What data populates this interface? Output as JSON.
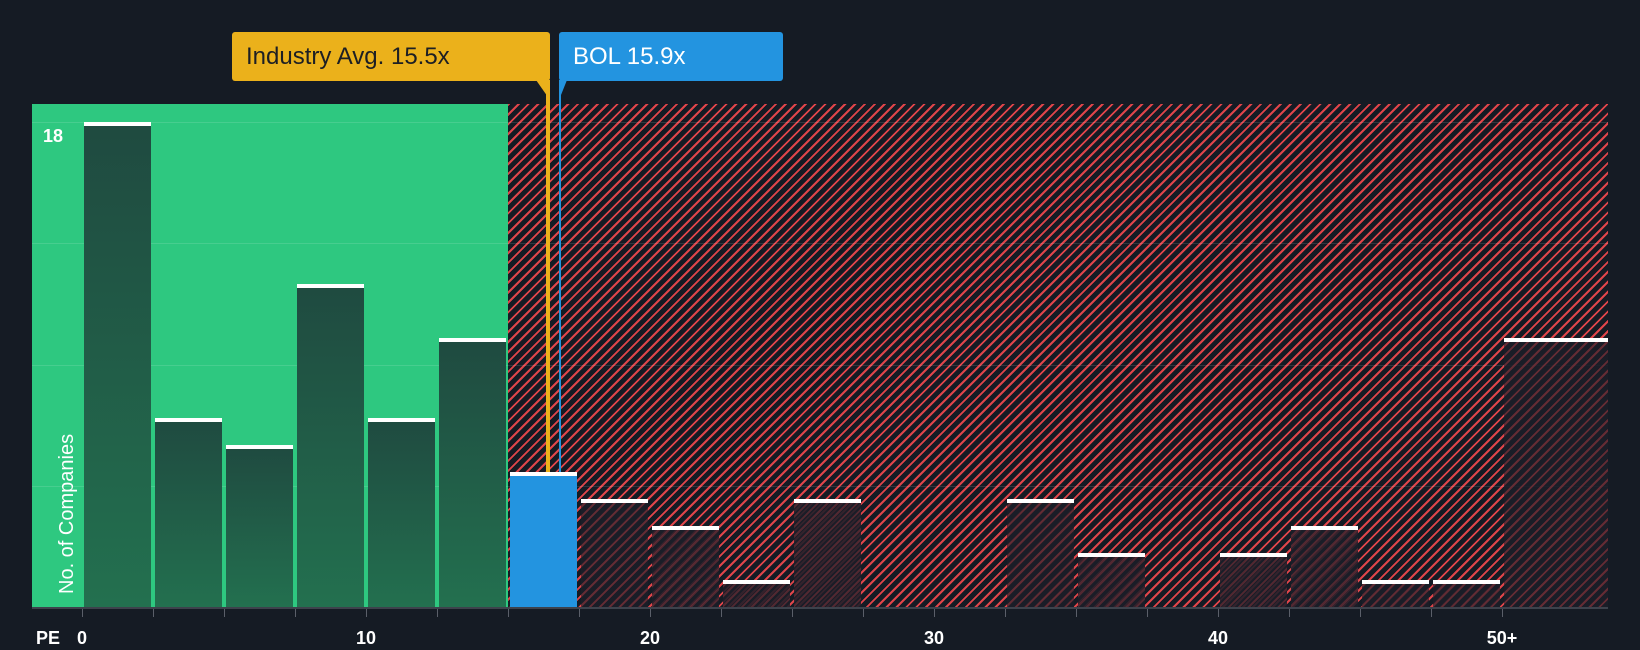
{
  "chart_data": {
    "type": "bar",
    "title": "",
    "xlabel": "PE",
    "ylabel": "No. of Companies",
    "ylim": [
      0,
      18
    ],
    "y_max_label": "18",
    "x_ticks": [
      "0",
      "10",
      "20",
      "30",
      "40",
      "50+"
    ],
    "bin_width": 2.5,
    "categories": [
      "0-2.5",
      "2.5-5",
      "5-7.5",
      "7.5-10",
      "10-12.5",
      "12.5-15",
      "15-17.5",
      "17.5-20",
      "20-22.5",
      "22.5-25",
      "25-27.5",
      "27.5-30",
      "30-32.5",
      "32.5-35",
      "35-37.5",
      "37.5-40",
      "40-42.5",
      "42.5-45",
      "45-47.5",
      "47.5-50",
      "50+"
    ],
    "values": [
      18,
      7,
      6,
      12,
      7,
      10,
      5,
      4,
      3,
      1,
      4,
      0,
      0,
      4,
      2,
      0,
      2,
      3,
      1,
      1,
      10
    ],
    "highlight_bin_index": 6,
    "annotations": [
      {
        "label": "Industry Avg. 15.5x",
        "value": 15.5,
        "color": "#ebb11b"
      },
      {
        "label": "BOL 15.9x",
        "value": 15.9,
        "color": "#2394e0"
      }
    ],
    "zones": [
      {
        "name": "undervalued",
        "from": 0,
        "to": 15.0,
        "color": "#2ec880"
      },
      {
        "name": "overvalued",
        "from": 15.0,
        "to": 51.5,
        "color": "#e0454a"
      }
    ],
    "grid": true,
    "legend": null
  },
  "labels": {
    "industry_tag": "Industry Avg. 15.5x",
    "company_tag": "BOL 15.9x",
    "pe": "PE",
    "y_axis": "No. of Companies",
    "y_max": "18"
  },
  "colors": {
    "background": "#151b24",
    "green_zone": "#2ec880",
    "red_hatch": "#e0454a",
    "industry": "#ebb11b",
    "company": "#2394e0",
    "cap": "#ffffff"
  }
}
